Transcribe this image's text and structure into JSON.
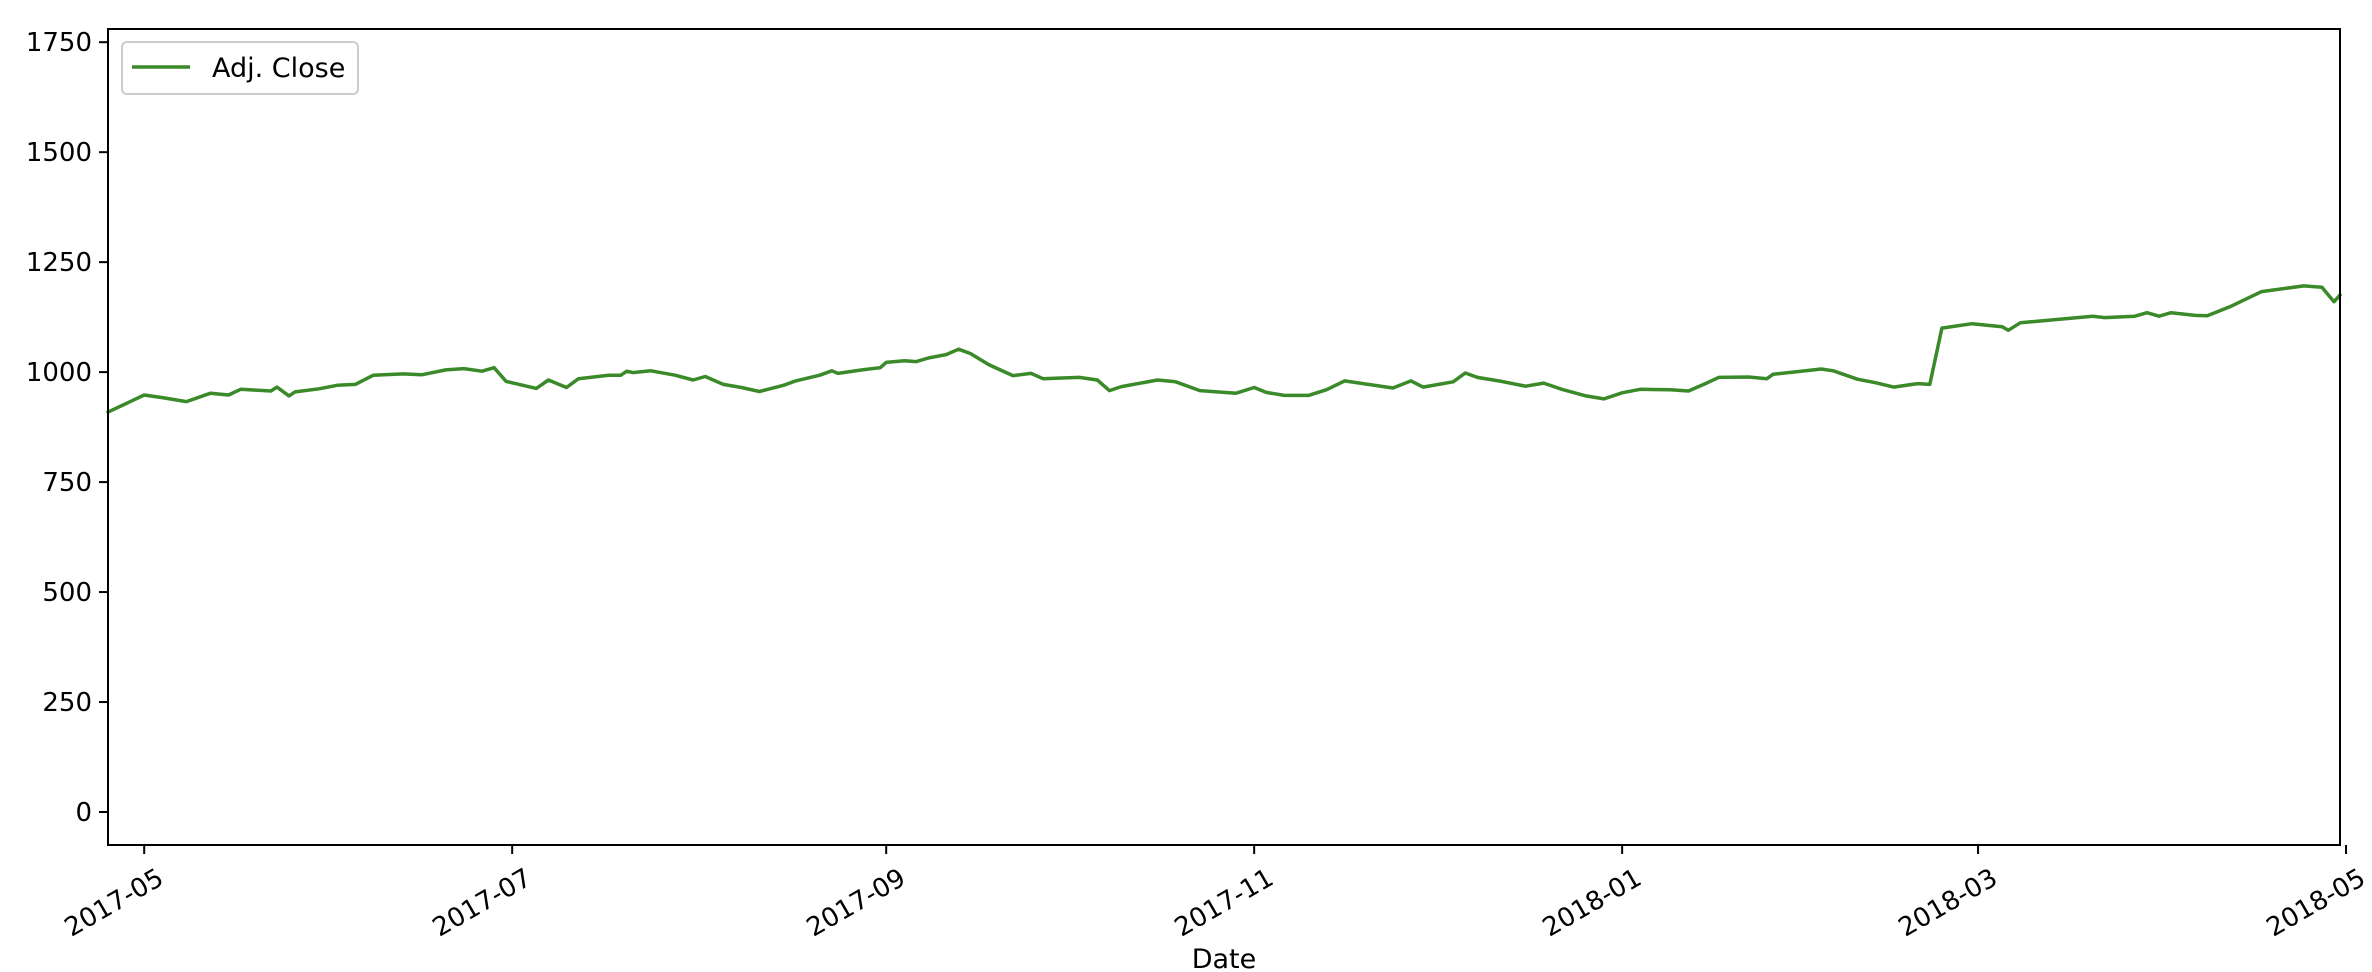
{
  "chart_data": {
    "type": "line",
    "title": "",
    "xlabel": "Date",
    "ylabel": "",
    "xlim": [
      "2017-04-25",
      "2018-04-30"
    ],
    "ylim": [
      -75,
      1780
    ],
    "x_ticks": [
      "2017-05",
      "2017-07",
      "2017-09",
      "2017-11",
      "2018-01",
      "2018-03",
      "2018-05"
    ],
    "y_ticks": [
      0,
      250,
      500,
      750,
      1000,
      1250,
      1500,
      1750
    ],
    "grid": false,
    "legend": {
      "position": "top-left",
      "entries": [
        "Adj. Close"
      ]
    },
    "series": [
      {
        "name": "Adj. Close",
        "color": "#3a8a2a",
        "points": [
          [
            "2017-04-25",
            909
          ],
          [
            "2017-05-01",
            948
          ],
          [
            "2017-05-04",
            942
          ],
          [
            "2017-05-08",
            933
          ],
          [
            "2017-05-12",
            952
          ],
          [
            "2017-05-15",
            948
          ],
          [
            "2017-05-17",
            961
          ],
          [
            "2017-05-22",
            957
          ],
          [
            "2017-05-23",
            966
          ],
          [
            "2017-05-25",
            946
          ],
          [
            "2017-05-26",
            955
          ],
          [
            "2017-05-30",
            962
          ],
          [
            "2017-06-02",
            970
          ],
          [
            "2017-06-05",
            972
          ],
          [
            "2017-06-08",
            993
          ],
          [
            "2017-06-13",
            996
          ],
          [
            "2017-06-16",
            994
          ],
          [
            "2017-06-20",
            1005
          ],
          [
            "2017-06-23",
            1008
          ],
          [
            "2017-06-26",
            1002
          ],
          [
            "2017-06-28",
            1010
          ],
          [
            "2017-06-30",
            979
          ],
          [
            "2017-07-05",
            963
          ],
          [
            "2017-07-07",
            982
          ],
          [
            "2017-07-10",
            965
          ],
          [
            "2017-07-12",
            985
          ],
          [
            "2017-07-17",
            993
          ],
          [
            "2017-07-19",
            993
          ],
          [
            "2017-07-20",
            1002
          ],
          [
            "2017-07-21",
            999
          ],
          [
            "2017-07-24",
            1003
          ],
          [
            "2017-07-28",
            993
          ],
          [
            "2017-07-31",
            982
          ],
          [
            "2017-08-02",
            990
          ],
          [
            "2017-08-05",
            972
          ],
          [
            "2017-08-08",
            965
          ],
          [
            "2017-08-11",
            956
          ],
          [
            "2017-08-15",
            970
          ],
          [
            "2017-08-17",
            980
          ],
          [
            "2017-08-21",
            993
          ],
          [
            "2017-08-23",
            1003
          ],
          [
            "2017-08-24",
            997
          ],
          [
            "2017-08-28",
            1005
          ],
          [
            "2017-08-31",
            1010
          ],
          [
            "2017-09-01",
            1022
          ],
          [
            "2017-09-04",
            1026
          ],
          [
            "2017-09-06",
            1024
          ],
          [
            "2017-09-08",
            1032
          ],
          [
            "2017-09-11",
            1040
          ],
          [
            "2017-09-13",
            1052
          ],
          [
            "2017-09-15",
            1042
          ],
          [
            "2017-09-18",
            1017
          ],
          [
            "2017-09-22",
            992
          ],
          [
            "2017-09-25",
            997
          ],
          [
            "2017-09-27",
            985
          ],
          [
            "2017-09-29",
            986
          ],
          [
            "2017-10-03",
            988
          ],
          [
            "2017-10-06",
            982
          ],
          [
            "2017-10-08",
            958
          ],
          [
            "2017-10-10",
            967
          ],
          [
            "2017-10-16",
            982
          ],
          [
            "2017-10-19",
            978
          ],
          [
            "2017-10-23",
            958
          ],
          [
            "2017-10-29",
            952
          ],
          [
            "2017-11-01",
            965
          ],
          [
            "2017-11-03",
            954
          ],
          [
            "2017-11-06",
            947
          ],
          [
            "2017-11-10",
            947
          ],
          [
            "2017-11-13",
            960
          ],
          [
            "2017-11-16",
            980
          ],
          [
            "2017-11-24",
            964
          ],
          [
            "2017-11-27",
            980
          ],
          [
            "2017-11-29",
            966
          ],
          [
            "2017-12-04",
            978
          ],
          [
            "2017-12-06",
            998
          ],
          [
            "2017-12-08",
            988
          ],
          [
            "2017-12-12",
            979
          ],
          [
            "2017-12-16",
            968
          ],
          [
            "2017-12-19",
            975
          ],
          [
            "2017-12-22",
            961
          ],
          [
            "2017-12-26",
            946
          ],
          [
            "2017-12-29",
            939
          ],
          [
            "2018-01-01",
            953
          ],
          [
            "2018-01-04",
            961
          ],
          [
            "2018-01-09",
            960
          ],
          [
            "2018-01-12",
            957
          ],
          [
            "2018-01-15",
            975
          ],
          [
            "2018-01-17",
            988
          ],
          [
            "2018-01-22",
            989
          ],
          [
            "2018-01-25",
            985
          ],
          [
            "2018-01-26",
            995
          ],
          [
            "2018-02-01",
            1004
          ],
          [
            "2018-02-03",
            1007
          ],
          [
            "2018-02-05",
            1003
          ],
          [
            "2018-02-09",
            984
          ],
          [
            "2018-02-12",
            976
          ],
          [
            "2018-02-15",
            966
          ],
          [
            "2018-02-19",
            974
          ],
          [
            "2018-02-21",
            972
          ],
          [
            "2018-02-23",
            1100
          ],
          [
            "2018-02-28",
            1110
          ],
          [
            "2018-03-05",
            1103
          ],
          [
            "2018-03-06",
            1095
          ],
          [
            "2018-03-08",
            1112
          ],
          [
            "2018-03-20",
            1127
          ],
          [
            "2018-03-22",
            1124
          ],
          [
            "2018-03-27",
            1127
          ],
          [
            "2018-03-29",
            1135
          ],
          [
            "2018-03-31",
            1127
          ],
          [
            "2018-04-02",
            1135
          ],
          [
            "2018-04-06",
            1129
          ],
          [
            "2018-04-08",
            1128
          ],
          [
            "2018-04-12",
            1150
          ],
          [
            "2018-04-17",
            1183
          ],
          [
            "2018-04-24",
            1196
          ],
          [
            "2018-04-27",
            1193
          ],
          [
            "2018-04-29",
            1160
          ],
          [
            "2018-04-30",
            1175
          ]
        ]
      },
      {
        "name": "",
        "color": "#1f3fe0",
        "points": []
      }
    ]
  }
}
